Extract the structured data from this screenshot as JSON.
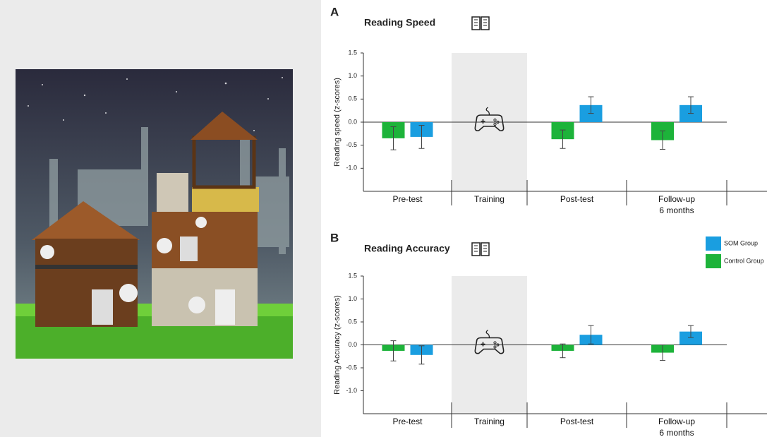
{
  "chart_data": [
    {
      "type": "bar",
      "panel_label": "A",
      "title": "Reading Speed",
      "y_label": "Reading speed (z-scores)",
      "categories": [
        "Pre-test",
        "Training",
        "Post-test",
        "Follow-up\n6 months"
      ],
      "series": [
        {
          "name": "Control Group",
          "color": "#1db33a",
          "values": [
            -0.35,
            null,
            -0.37,
            -0.39
          ],
          "errors": [
            0.25,
            null,
            0.2,
            0.2
          ]
        },
        {
          "name": "SOM Group",
          "color": "#1a9ee0",
          "values": [
            -0.32,
            null,
            0.37,
            0.37
          ],
          "errors": [
            0.25,
            null,
            0.18,
            0.18
          ]
        }
      ],
      "ylim": [
        -1.5,
        1.5
      ],
      "yticks": [
        1.5,
        {
          "value": 1.0,
          "label": "1.0"
        },
        0.5,
        {
          "value": 0,
          "label": "0.0"
        },
        -0.5,
        {
          "value": -1.0,
          "label": "-1.0"
        }
      ],
      "legend": false
    },
    {
      "type": "bar",
      "panel_label": "B",
      "title": "Reading Accuracy",
      "y_label": "Reading Accuracy (z-scores)",
      "categories": [
        "Pre-test",
        "Training",
        "Post-test",
        "Follow-up\n6 months"
      ],
      "series": [
        {
          "name": "Control Group",
          "color": "#1db33a",
          "values": [
            -0.13,
            null,
            -0.13,
            -0.17
          ],
          "errors": [
            0.22,
            null,
            0.15,
            0.17
          ]
        },
        {
          "name": "SOM Group",
          "color": "#1a9ee0",
          "values": [
            -0.22,
            null,
            0.22,
            0.29
          ],
          "errors": [
            0.2,
            null,
            0.2,
            0.13
          ]
        }
      ],
      "ylim": [
        -1.5,
        1.5
      ],
      "yticks": [
        1.5,
        {
          "value": 1.0,
          "label": "1.0"
        },
        0.5,
        {
          "value": 0,
          "label": "0.0"
        },
        -0.5,
        {
          "value": -1.0,
          "label": "-1.0"
        }
      ],
      "legend": "right"
    }
  ]
}
